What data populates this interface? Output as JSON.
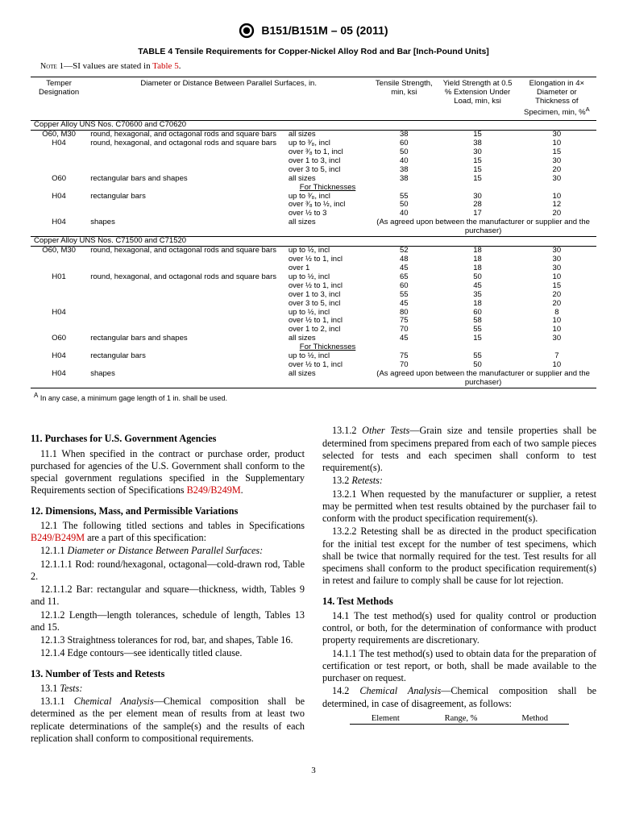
{
  "header": {
    "designation": "B151/B151M – 05 (2011)"
  },
  "table": {
    "title": "TABLE 4 Tensile Requirements for Copper-Nickel Alloy Rod and Bar [Inch-Pound Units]",
    "note_label": "Note",
    "note_num": "1",
    "note_text": "—SI values are stated in ",
    "note_link": "Table 5",
    "note_end": ".",
    "col1": "Temper Designation",
    "col2": "Diameter or Distance Between Parallel Surfaces, in.",
    "col3": "Tensile Strength, min, ksi",
    "col4": "Yield Strength at 0.5 % Extension Under Load, min, ksi",
    "col5_a": "Elongation in 4× Diameter or Thickness of Specimen, min, %",
    "col5_sup": "A",
    "section1": "Copper Alloy UNS Nos. C70600 and C70620",
    "section2": "Copper Alloy UNS Nos. C71500 and C71520",
    "for_thick": "For Thicknesses",
    "agreed": "(As agreed upon between the manufacturer or supplier and the purchaser)",
    "rows1": [
      {
        "t": "O60, M30",
        "d": "round, hexagonal, and octagonal rods and square bars",
        "s": "all sizes",
        "ts": "38",
        "ys": "15",
        "el": "30"
      },
      {
        "t": "H04",
        "d": "round, hexagonal, and octagonal rods and square bars",
        "s": "up to ³⁄₈, incl",
        "ts": "60",
        "ys": "38",
        "el": "10"
      },
      {
        "t": "",
        "d": "",
        "s": "over ³⁄₈ to 1, incl",
        "ts": "50",
        "ys": "30",
        "el": "15"
      },
      {
        "t": "",
        "d": "",
        "s": "over 1 to 3, incl",
        "ts": "40",
        "ys": "15",
        "el": "30"
      },
      {
        "t": "",
        "d": "",
        "s": "over 3 to 5, incl",
        "ts": "38",
        "ys": "15",
        "el": "20"
      },
      {
        "t": "O60",
        "d": "rectangular bars and shapes",
        "s": "all sizes",
        "ts": "38",
        "ys": "15",
        "el": "30"
      }
    ],
    "rows1b": [
      {
        "t": "H04",
        "d": "rectangular bars",
        "s": "up to ³⁄₈, incl",
        "ts": "55",
        "ys": "30",
        "el": "10"
      },
      {
        "t": "",
        "d": "",
        "s": "over ³⁄₈ to ½, incl",
        "ts": "50",
        "ys": "28",
        "el": "12"
      },
      {
        "t": "",
        "d": "",
        "s": "over ½ to 3",
        "ts": "40",
        "ys": "17",
        "el": "20"
      }
    ],
    "rows1c": {
      "t": "H04",
      "d": "shapes",
      "s": "all sizes"
    },
    "rows2": [
      {
        "t": "O60, M30",
        "d": "round, hexagonal, and octagonal rods and square bars",
        "s": "up to ½, incl",
        "ts": "52",
        "ys": "18",
        "el": "30"
      },
      {
        "t": "",
        "d": "",
        "s": "over ½ to 1, incl",
        "ts": "48",
        "ys": "18",
        "el": "30"
      },
      {
        "t": "",
        "d": "",
        "s": "over 1",
        "ts": "45",
        "ys": "18",
        "el": "30"
      },
      {
        "t": "H01",
        "d": "round, hexagonal, and octagonal rods and square bars",
        "s": "up to ½, incl",
        "ts": "65",
        "ys": "50",
        "el": "10"
      },
      {
        "t": "",
        "d": "",
        "s": "over ½ to 1, incl",
        "ts": "60",
        "ys": "45",
        "el": "15"
      },
      {
        "t": "",
        "d": "",
        "s": "over 1 to 3, incl",
        "ts": "55",
        "ys": "35",
        "el": "20"
      },
      {
        "t": "",
        "d": "",
        "s": "over 3 to 5, incl",
        "ts": "45",
        "ys": "18",
        "el": "20"
      },
      {
        "t": "H04",
        "d": "",
        "s": "up to ½, incl",
        "ts": "80",
        "ys": "60",
        "el": "8"
      },
      {
        "t": "",
        "d": "",
        "s": "over ½ to 1, incl",
        "ts": "75",
        "ys": "58",
        "el": "10"
      },
      {
        "t": "",
        "d": "",
        "s": "over 1 to 2, incl",
        "ts": "70",
        "ys": "55",
        "el": "10"
      },
      {
        "t": "O60",
        "d": "rectangular bars and shapes",
        "s": "all sizes",
        "ts": "45",
        "ys": "15",
        "el": "30"
      }
    ],
    "rows2b": [
      {
        "t": "H04",
        "d": "rectangular bars",
        "s": "up to ½, incl",
        "ts": "75",
        "ys": "55",
        "el": "7"
      },
      {
        "t": "",
        "d": "",
        "s": "over ½ to 1, incl",
        "ts": "70",
        "ys": "50",
        "el": "10"
      }
    ],
    "rows2c": {
      "t": "H04",
      "d": "shapes",
      "s": "all sizes"
    },
    "footnote_sup": "A",
    "footnote": " In any case, a minimum gage length of 1 in. shall be used."
  },
  "body": {
    "s11_head": "11. Purchases for U.S. Government Agencies",
    "s11_1a": "11.1 When specified in the contract or purchase order, product purchased for agencies of the U.S. Government shall conform to the special government regulations specified in the Supplementary Requirements section of Specifications ",
    "s11_1_link": "B249/B249M",
    "s11_1b": ".",
    "s12_head": "12. Dimensions, Mass, and Permissible Variations",
    "s12_1a": "12.1 The following titled sections and tables in Specifications ",
    "s12_1_link": "B249/B249M",
    "s12_1b": " are a part of this specification:",
    "s12_1_1": "12.1.1 ",
    "s12_1_1_it": "Diameter or Distance Between Parallel Surfaces:",
    "s12_1_1_1": "12.1.1.1 Rod: round/hexagonal, octagonal—cold-drawn rod, Table 2.",
    "s12_1_1_2": "12.1.1.2 Bar: rectangular and square—thickness, width, Tables 9 and 11.",
    "s12_1_2": "12.1.2 Length—length tolerances, schedule of length, Tables 13 and 15.",
    "s12_1_3": "12.1.3 Straightness tolerances for rod, bar, and shapes, Table 16.",
    "s12_1_4": "12.1.4 Edge contours—see identically titled clause.",
    "s13_head": "13. Number of Tests and Retests",
    "s13_1": "13.1 ",
    "s13_1_it": "Tests:",
    "s13_1_1a": "13.1.1 ",
    "s13_1_1_it": "Chemical Analysis",
    "s13_1_1b": "—Chemical composition shall be determined as the per element mean of results from at least two replicate determinations of the sample(s) and the results of each replication shall conform to compositional requirements.",
    "s13_1_2a": "13.1.2 ",
    "s13_1_2_it": "Other Tests",
    "s13_1_2b": "—Grain size and tensile properties shall be determined from specimens prepared from each of two sample pieces selected for tests and each specimen shall conform to test requirement(s).",
    "s13_2": "13.2 ",
    "s13_2_it": "Retests:",
    "s13_2_1": "13.2.1 When requested by the manufacturer or supplier, a retest may be permitted when test results obtained by the purchaser fail to conform with the product specification requirement(s).",
    "s13_2_2": "13.2.2 Retesting shall be as directed in the product specification for the initial test except for the number of test specimens, which shall be twice that normally required for the test. Test results for all specimens shall conform to the product specification requirement(s) in retest and failure to comply shall be cause for lot rejection.",
    "s14_head": "14. Test Methods",
    "s14_1": "14.1 The test method(s) used for quality control or production control, or both, for the determination of conformance with product property requirements are discretionary.",
    "s14_1_1": "14.1.1 The test method(s) used to obtain data for the preparation of certification or test report, or both, shall be made available to the purchaser on request.",
    "s14_2a": "14.2 ",
    "s14_2_it": "Chemical Analysis",
    "s14_2b": "—Chemical composition shall be determined, in case of disagreement, as follows:",
    "mini_h1": "Element",
    "mini_h2": "Range, %",
    "mini_h3": "Method"
  },
  "pagenum": "3"
}
